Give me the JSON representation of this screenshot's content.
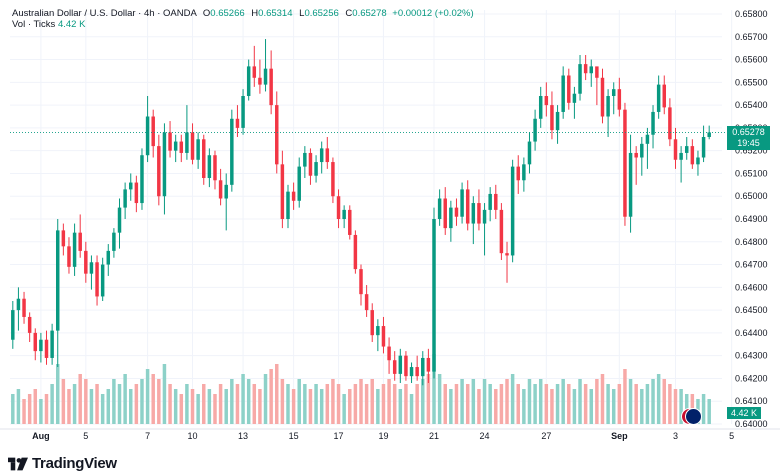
{
  "legend": {
    "symbol": "Australian Dollar / U.S. Dollar · 4h · OANDA",
    "open_label": "O",
    "open": "0.65266",
    "high_label": "H",
    "high": "0.65314",
    "low_label": "L",
    "low": "0.65256",
    "close_label": "C",
    "close": "0.65278",
    "change": "+0.00012 (+0.02%)",
    "vol_label": "Vol · Ticks",
    "vol_value": "4.42 K"
  },
  "price_tag": {
    "price": "0.65278",
    "countdown": "19:45"
  },
  "volume_tag": "4.42 K",
  "brand": "TradingView",
  "colors": {
    "up": "#089981",
    "down": "#f23645",
    "up_vol": "#8dd1c8",
    "down_vol": "#f7a9a7"
  },
  "chart_data": {
    "type": "candlestick",
    "title": "Australian Dollar / U.S. Dollar · 4h · OANDA",
    "ylim": [
      0.64,
      0.658
    ],
    "y_ticks": [
      "0.65800",
      "0.65700",
      "0.65600",
      "0.65500",
      "0.65400",
      "0.65300",
      "0.65200",
      "0.65100",
      "0.65000",
      "0.64900",
      "0.64800",
      "0.64700",
      "0.64600",
      "0.64500",
      "0.64400",
      "0.64300",
      "0.64200",
      "0.64100",
      "0.64000"
    ],
    "x_ticks": [
      {
        "label": "Aug",
        "bar": 5
      },
      {
        "label": "5",
        "bar": 13
      },
      {
        "label": "7",
        "bar": 24
      },
      {
        "label": "10",
        "bar": 32
      },
      {
        "label": "13",
        "bar": 41
      },
      {
        "label": "15",
        "bar": 50
      },
      {
        "label": "17",
        "bar": 58
      },
      {
        "label": "19",
        "bar": 66
      },
      {
        "label": "21",
        "bar": 75
      },
      {
        "label": "24",
        "bar": 84
      },
      {
        "label": "27",
        "bar": 95
      },
      {
        "label": "Sep",
        "bar": 108
      },
      {
        "label": "3",
        "bar": 118
      },
      {
        "label": "5",
        "bar": 128
      }
    ],
    "candles": [
      [
        0.6437,
        0.6454,
        0.6433,
        0.645,
        6
      ],
      [
        0.645,
        0.646,
        0.6441,
        0.6455,
        7
      ],
      [
        0.6455,
        0.6458,
        0.6444,
        0.6447,
        5
      ],
      [
        0.6447,
        0.6449,
        0.6436,
        0.644,
        6
      ],
      [
        0.644,
        0.6442,
        0.6428,
        0.6432,
        7
      ],
      [
        0.6432,
        0.644,
        0.6427,
        0.6437,
        5
      ],
      [
        0.6437,
        0.6441,
        0.6426,
        0.6429,
        6
      ],
      [
        0.6429,
        0.6444,
        0.6426,
        0.6441,
        8
      ],
      [
        0.6441,
        0.649,
        0.6425,
        0.6485,
        12
      ],
      [
        0.6485,
        0.6488,
        0.6474,
        0.6478,
        9
      ],
      [
        0.6478,
        0.6482,
        0.6466,
        0.6469,
        7
      ],
      [
        0.6469,
        0.6488,
        0.6465,
        0.6484,
        8
      ],
      [
        0.6484,
        0.6492,
        0.6473,
        0.6476,
        10
      ],
      [
        0.6476,
        0.648,
        0.6462,
        0.6466,
        9
      ],
      [
        0.6466,
        0.6474,
        0.6459,
        0.6471,
        7
      ],
      [
        0.6471,
        0.6474,
        0.6452,
        0.6456,
        8
      ],
      [
        0.6456,
        0.6473,
        0.6454,
        0.647,
        6
      ],
      [
        0.647,
        0.6479,
        0.6465,
        0.6476,
        7
      ],
      [
        0.6476,
        0.6486,
        0.6473,
        0.6484,
        9
      ],
      [
        0.6484,
        0.6499,
        0.6477,
        0.6495,
        8
      ],
      [
        0.6495,
        0.6506,
        0.649,
        0.6503,
        10
      ],
      [
        0.6503,
        0.651,
        0.6498,
        0.6506,
        7
      ],
      [
        0.6506,
        0.6509,
        0.6493,
        0.6497,
        8
      ],
      [
        0.6497,
        0.6521,
        0.6494,
        0.6518,
        9
      ],
      [
        0.6518,
        0.6544,
        0.6515,
        0.6535,
        11
      ],
      [
        0.6535,
        0.6538,
        0.6517,
        0.6522,
        10
      ],
      [
        0.6522,
        0.6527,
        0.6496,
        0.65,
        9
      ],
      [
        0.65,
        0.6532,
        0.6492,
        0.6528,
        12
      ],
      [
        0.6528,
        0.6533,
        0.6517,
        0.652,
        8
      ],
      [
        0.652,
        0.6527,
        0.6515,
        0.6524,
        7
      ],
      [
        0.6524,
        0.6527,
        0.6515,
        0.6519,
        6
      ],
      [
        0.6519,
        0.654,
        0.6516,
        0.6528,
        8
      ],
      [
        0.6528,
        0.6532,
        0.6514,
        0.6516,
        7
      ],
      [
        0.6516,
        0.6528,
        0.6512,
        0.6525,
        6
      ],
      [
        0.6525,
        0.6527,
        0.6505,
        0.6508,
        8
      ],
      [
        0.6508,
        0.6521,
        0.6504,
        0.6518,
        7
      ],
      [
        0.6518,
        0.652,
        0.6503,
        0.6507,
        6
      ],
      [
        0.6507,
        0.6512,
        0.6496,
        0.6499,
        8
      ],
      [
        0.6499,
        0.651,
        0.6485,
        0.6505,
        7
      ],
      [
        0.6505,
        0.6538,
        0.6502,
        0.6534,
        9
      ],
      [
        0.6534,
        0.654,
        0.6526,
        0.653,
        8
      ],
      [
        0.653,
        0.6547,
        0.6527,
        0.6544,
        10
      ],
      [
        0.6544,
        0.656,
        0.6542,
        0.6557,
        9
      ],
      [
        0.6557,
        0.6566,
        0.6548,
        0.6552,
        8
      ],
      [
        0.6552,
        0.656,
        0.6545,
        0.6549,
        7
      ],
      [
        0.6549,
        0.6569,
        0.6546,
        0.6556,
        10
      ],
      [
        0.6556,
        0.6564,
        0.6536,
        0.654,
        11
      ],
      [
        0.654,
        0.6546,
        0.651,
        0.6514,
        12
      ],
      [
        0.6514,
        0.652,
        0.6486,
        0.649,
        9
      ],
      [
        0.649,
        0.6505,
        0.6486,
        0.6502,
        8
      ],
      [
        0.6502,
        0.6506,
        0.6494,
        0.6498,
        7
      ],
      [
        0.6498,
        0.6517,
        0.6495,
        0.6513,
        9
      ],
      [
        0.6513,
        0.6522,
        0.6508,
        0.6519,
        8
      ],
      [
        0.6519,
        0.6521,
        0.6505,
        0.6509,
        7
      ],
      [
        0.6509,
        0.6518,
        0.6506,
        0.6515,
        8
      ],
      [
        0.6515,
        0.6524,
        0.651,
        0.6521,
        7
      ],
      [
        0.6521,
        0.6526,
        0.6512,
        0.6515,
        8
      ],
      [
        0.6515,
        0.6517,
        0.6497,
        0.65,
        9
      ],
      [
        0.65,
        0.6503,
        0.6486,
        0.649,
        8
      ],
      [
        0.649,
        0.6496,
        0.6486,
        0.6494,
        6
      ],
      [
        0.6494,
        0.6496,
        0.6481,
        0.6483,
        7
      ],
      [
        0.6483,
        0.6485,
        0.6466,
        0.6468,
        8
      ],
      [
        0.6468,
        0.647,
        0.6452,
        0.6457,
        9
      ],
      [
        0.6457,
        0.6461,
        0.6447,
        0.645,
        8
      ],
      [
        0.645,
        0.6453,
        0.6436,
        0.6439,
        9
      ],
      [
        0.6439,
        0.6446,
        0.6432,
        0.6443,
        7
      ],
      [
        0.6443,
        0.6447,
        0.6431,
        0.6434,
        8
      ],
      [
        0.6434,
        0.6438,
        0.6422,
        0.6428,
        9
      ],
      [
        0.6428,
        0.6432,
        0.6419,
        0.6422,
        8
      ],
      [
        0.6422,
        0.6433,
        0.6418,
        0.643,
        7
      ],
      [
        0.643,
        0.6432,
        0.6419,
        0.6421,
        8
      ],
      [
        0.6421,
        0.6427,
        0.6418,
        0.6425,
        6
      ],
      [
        0.6425,
        0.643,
        0.6419,
        0.6421,
        8
      ],
      [
        0.6421,
        0.6432,
        0.6417,
        0.6429,
        9
      ],
      [
        0.6429,
        0.6433,
        0.6418,
        0.6423,
        10
      ],
      [
        0.6423,
        0.6495,
        0.642,
        0.649,
        14
      ],
      [
        0.649,
        0.6503,
        0.6487,
        0.6499,
        10
      ],
      [
        0.6499,
        0.6504,
        0.6483,
        0.6486,
        8
      ],
      [
        0.6486,
        0.6498,
        0.648,
        0.6495,
        7
      ],
      [
        0.6495,
        0.6499,
        0.6487,
        0.6491,
        8
      ],
      [
        0.6491,
        0.6506,
        0.6488,
        0.6503,
        9
      ],
      [
        0.6503,
        0.6507,
        0.6485,
        0.6488,
        8
      ],
      [
        0.6488,
        0.65,
        0.6479,
        0.6497,
        9
      ],
      [
        0.6497,
        0.6503,
        0.6485,
        0.6488,
        7
      ],
      [
        0.6488,
        0.6497,
        0.6474,
        0.6494,
        9
      ],
      [
        0.6494,
        0.6504,
        0.6489,
        0.6501,
        8
      ],
      [
        0.6501,
        0.6505,
        0.649,
        0.6494,
        7
      ],
      [
        0.6494,
        0.6497,
        0.6472,
        0.6475,
        8
      ],
      [
        0.6475,
        0.648,
        0.6462,
        0.6474,
        9
      ],
      [
        0.6474,
        0.6516,
        0.6471,
        0.6513,
        10
      ],
      [
        0.6513,
        0.6518,
        0.6501,
        0.6507,
        8
      ],
      [
        0.6507,
        0.6517,
        0.6502,
        0.6514,
        7
      ],
      [
        0.6514,
        0.6528,
        0.651,
        0.6524,
        9
      ],
      [
        0.6524,
        0.6538,
        0.652,
        0.6534,
        8
      ],
      [
        0.6534,
        0.6548,
        0.653,
        0.6544,
        9
      ],
      [
        0.6544,
        0.655,
        0.6535,
        0.654,
        8
      ],
      [
        0.654,
        0.6546,
        0.6525,
        0.6529,
        7
      ],
      [
        0.6529,
        0.654,
        0.6523,
        0.6537,
        8
      ],
      [
        0.6537,
        0.6557,
        0.6534,
        0.6553,
        9
      ],
      [
        0.6553,
        0.6556,
        0.6538,
        0.6541,
        8
      ],
      [
        0.6541,
        0.6548,
        0.6534,
        0.6545,
        7
      ],
      [
        0.6545,
        0.6562,
        0.6542,
        0.6558,
        9
      ],
      [
        0.6558,
        0.6562,
        0.6551,
        0.6554,
        8
      ],
      [
        0.6554,
        0.656,
        0.6548,
        0.6557,
        7
      ],
      [
        0.6557,
        0.6556,
        0.654,
        0.6552,
        9
      ],
      [
        0.6552,
        0.6556,
        0.6532,
        0.6535,
        10
      ],
      [
        0.6535,
        0.6547,
        0.6526,
        0.6544,
        8
      ],
      [
        0.6544,
        0.655,
        0.6536,
        0.6547,
        7
      ],
      [
        0.6547,
        0.6552,
        0.6535,
        0.6538,
        8
      ],
      [
        0.6538,
        0.6541,
        0.6487,
        0.6491,
        11
      ],
      [
        0.6491,
        0.6527,
        0.6484,
        0.6519,
        9
      ],
      [
        0.6519,
        0.6522,
        0.6505,
        0.6517,
        8
      ],
      [
        0.6517,
        0.6526,
        0.6509,
        0.6523,
        7
      ],
      [
        0.6523,
        0.653,
        0.6512,
        0.6527,
        8
      ],
      [
        0.6527,
        0.654,
        0.6521,
        0.6537,
        9
      ],
      [
        0.6537,
        0.6553,
        0.6534,
        0.6549,
        10
      ],
      [
        0.6549,
        0.6553,
        0.6536,
        0.6539,
        9
      ],
      [
        0.6539,
        0.6543,
        0.6522,
        0.6525,
        8
      ],
      [
        0.6525,
        0.653,
        0.6512,
        0.6516,
        7
      ],
      [
        0.6516,
        0.6522,
        0.6506,
        0.6519,
        7
      ],
      [
        0.6519,
        0.6526,
        0.6516,
        0.6522,
        6
      ],
      [
        0.6522,
        0.6525,
        0.6512,
        0.6514,
        6
      ],
      [
        0.6514,
        0.652,
        0.6509,
        0.6517,
        5
      ],
      [
        0.6517,
        0.6531,
        0.6515,
        0.6526,
        6
      ],
      [
        0.6526,
        0.6531,
        0.6525,
        0.6528,
        5
      ]
    ]
  }
}
